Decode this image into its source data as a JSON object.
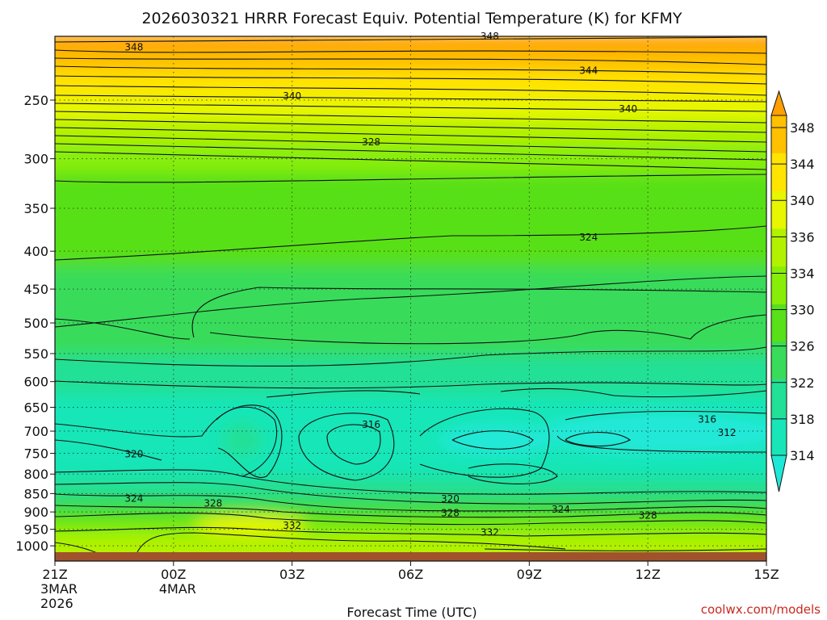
{
  "chart_data": {
    "type": "heatmap",
    "title": "2026030321 HRRR Forecast Equiv. Potential Temperature (K) for KFMY",
    "xlabel": "Forecast Time (UTC)",
    "ylabel": "",
    "x_ticks": [
      {
        "hour": 0,
        "lines": [
          "21Z",
          "3MAR",
          "2026"
        ]
      },
      {
        "hour": 3,
        "lines": [
          "00Z",
          "4MAR"
        ]
      },
      {
        "hour": 6,
        "lines": [
          "03Z"
        ]
      },
      {
        "hour": 9,
        "lines": [
          "06Z"
        ]
      },
      {
        "hour": 12,
        "lines": [
          "09Z"
        ]
      },
      {
        "hour": 15,
        "lines": [
          "12Z"
        ]
      },
      {
        "hour": 18,
        "lines": [
          "15Z"
        ]
      }
    ],
    "xlim": [
      0,
      18
    ],
    "ylim": [
      1020,
      200
    ],
    "y_scale": "log-pressure",
    "y_ticks": [
      250,
      300,
      350,
      400,
      450,
      500,
      550,
      600,
      650,
      700,
      750,
      800,
      850,
      900,
      950,
      1000
    ],
    "grid": true,
    "colorbar": {
      "levels": [
        314,
        318,
        322,
        326,
        330,
        334,
        336,
        340,
        344,
        348
      ],
      "colors": [
        "#20e8d8",
        "#18e6b8",
        "#22e096",
        "#38dc5a",
        "#58e018",
        "#88ee08",
        "#b2f200",
        "#e8f600",
        "#ffe400",
        "#ffc000",
        "#ffa000"
      ],
      "extend": "both"
    },
    "contour_labels": [
      {
        "text": "348",
        "hour": 2.0,
        "p": 212
      },
      {
        "text": "348",
        "hour": 11.0,
        "p": 205
      },
      {
        "text": "344",
        "hour": 13.5,
        "p": 228
      },
      {
        "text": "340",
        "hour": 6.0,
        "p": 247
      },
      {
        "text": "340",
        "hour": 14.5,
        "p": 257
      },
      {
        "text": "328",
        "hour": 8.0,
        "p": 285
      },
      {
        "text": "324",
        "hour": 13.5,
        "p": 383
      },
      {
        "text": "316",
        "hour": 8.0,
        "p": 686
      },
      {
        "text": "316",
        "hour": 16.5,
        "p": 675
      },
      {
        "text": "312",
        "hour": 17.0,
        "p": 703
      },
      {
        "text": "320",
        "hour": 2.0,
        "p": 752
      },
      {
        "text": "320",
        "hour": 10.0,
        "p": 864
      },
      {
        "text": "324",
        "hour": 2.0,
        "p": 863
      },
      {
        "text": "324",
        "hour": 12.8,
        "p": 893
      },
      {
        "text": "328",
        "hour": 4.0,
        "p": 876
      },
      {
        "text": "328",
        "hour": 10.0,
        "p": 903
      },
      {
        "text": "328",
        "hour": 15.0,
        "p": 910
      },
      {
        "text": "332",
        "hour": 6.0,
        "p": 939
      },
      {
        "text": "332",
        "hour": 11.0,
        "p": 959
      }
    ],
    "source": "coolwx.com/models"
  }
}
